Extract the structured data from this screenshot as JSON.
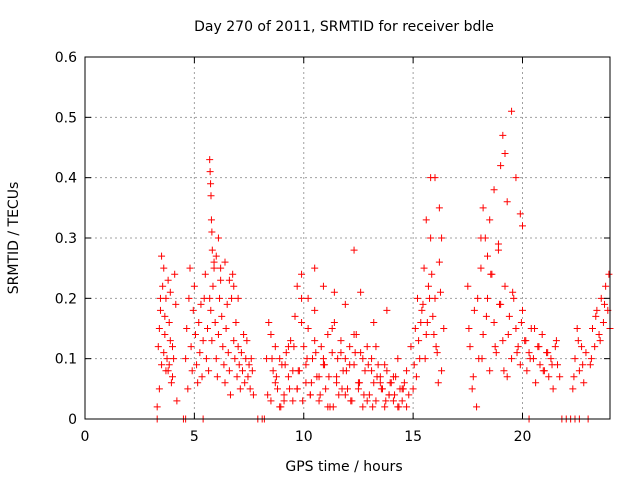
{
  "chart_data": {
    "type": "scatter",
    "title": "Day 270 of 2011, SRMTID for receiver bdle",
    "xlabel": "GPS time / hours",
    "ylabel": "SRMTID / TECUs",
    "xlim": [
      0,
      24
    ],
    "ylim": [
      0,
      0.6
    ],
    "xticks": [
      0,
      5,
      10,
      15,
      20
    ],
    "yticks": [
      0,
      0.1,
      0.2,
      0.3,
      0.4,
      0.5,
      0.6
    ],
    "xtick_labels": [
      "0",
      "5",
      "10",
      "15",
      "20"
    ],
    "ytick_labels": [
      "0",
      "0.1",
      "0.2",
      "0.3",
      "0.4",
      "0.5",
      "0.6"
    ],
    "grid": true,
    "marker": "+",
    "color": "#ff0000",
    "series": [
      {
        "x": [
          3.3,
          3.35,
          3.4,
          3.45,
          3.5,
          3.55,
          3.6,
          3.65,
          3.7,
          3.75,
          3.8,
          3.85,
          3.9,
          3.95,
          4.0,
          4.05,
          4.1,
          4.15,
          4.2,
          3.4,
          3.5,
          3.6,
          3.7,
          3.8,
          3.9,
          4.0,
          3.45,
          3.65,
          3.85,
          4.6,
          4.65,
          4.7,
          4.75,
          4.8,
          4.85,
          4.9,
          4.95,
          5.0,
          5.05,
          5.1,
          5.15,
          5.2,
          5.25,
          5.3,
          5.35,
          5.4,
          5.45,
          5.5,
          5.55,
          5.6,
          5.65,
          5.7,
          5.75,
          5.8,
          5.85,
          5.9,
          5.95,
          6.0,
          6.05,
          6.1,
          6.15,
          6.2,
          6.25,
          6.3,
          6.35,
          6.4,
          6.45,
          6.5,
          6.55,
          6.6,
          6.65,
          6.7,
          6.75,
          6.8,
          6.85,
          6.9,
          6.95,
          7.0,
          7.05,
          7.1,
          7.15,
          7.2,
          7.25,
          7.3,
          7.35,
          7.4,
          7.45,
          7.5,
          7.55,
          7.6,
          7.65,
          7.7,
          5.7,
          5.72,
          5.74,
          5.76,
          5.78,
          5.8,
          5.82,
          5.9,
          6.0,
          6.1,
          6.2,
          6.4,
          6.6,
          6.8,
          7.0,
          8.3,
          8.4,
          8.5,
          8.6,
          8.7,
          8.8,
          8.9,
          9.0,
          9.1,
          9.2,
          9.3,
          9.4,
          9.5,
          9.6,
          9.7,
          9.8,
          9.9,
          10.0,
          10.1,
          10.2,
          10.3,
          10.4,
          10.5,
          10.6,
          10.7,
          10.8,
          10.9,
          11.0,
          11.1,
          11.2,
          11.3,
          11.4,
          11.5,
          11.6,
          11.7,
          11.8,
          11.9,
          12.0,
          12.1,
          12.2,
          12.3,
          12.4,
          12.5,
          12.6,
          12.7,
          12.8,
          12.9,
          13.0,
          13.1,
          13.2,
          13.3,
          13.4,
          13.5,
          13.6,
          13.7,
          13.8,
          13.9,
          14.0,
          14.1,
          14.2,
          14.3,
          14.4,
          14.5,
          14.6,
          14.7,
          14.8,
          8.5,
          8.7,
          8.9,
          9.1,
          9.3,
          9.5,
          9.7,
          9.9,
          10.1,
          10.3,
          10.5,
          10.7,
          10.9,
          11.1,
          11.3,
          11.5,
          11.7,
          11.9,
          12.1,
          12.3,
          12.5,
          12.7,
          12.9,
          13.1,
          13.3,
          13.5,
          13.7,
          13.9,
          14.1,
          14.3,
          14.5,
          14.7,
          8.35,
          8.55,
          8.75,
          8.95,
          9.15,
          9.35,
          9.55,
          9.75,
          9.95,
          10.15,
          10.35,
          10.55,
          10.75,
          10.95,
          11.15,
          11.35,
          11.55,
          11.75,
          11.95,
          12.15,
          12.35,
          12.55,
          12.75,
          12.95,
          13.15,
          13.35,
          13.55,
          13.75,
          13.95,
          14.15,
          14.35,
          14.55,
          9.7,
          9.9,
          10.2,
          10.5,
          10.9,
          11.4,
          11.9,
          12.3,
          12.6,
          13.2,
          13.8,
          14.9,
          15.0,
          15.1,
          15.2,
          15.3,
          15.4,
          15.5,
          15.6,
          15.7,
          15.8,
          15.9,
          16.0,
          16.1,
          16.2,
          16.3,
          16.4,
          15.05,
          15.25,
          15.45,
          15.65,
          15.85,
          16.05,
          16.25,
          15.15,
          15.35,
          15.55,
          15.75,
          15.95,
          16.15,
          15.6,
          15.8,
          16.0,
          16.2,
          16.3,
          17.5,
          17.6,
          17.7,
          17.8,
          17.9,
          18.0,
          18.1,
          18.2,
          18.3,
          18.4,
          18.5,
          18.6,
          18.7,
          18.8,
          18.9,
          19.0,
          19.1,
          19.2,
          19.3,
          19.4,
          19.5,
          19.6,
          19.7,
          19.8,
          19.9,
          20.0,
          20.1,
          20.2,
          20.3,
          20.4,
          20.5,
          20.6,
          20.7,
          20.8,
          20.9,
          21.0,
          21.1,
          21.2,
          21.3,
          21.4,
          21.5,
          21.6,
          21.7,
          17.55,
          17.75,
          17.95,
          18.15,
          18.35,
          18.55,
          18.75,
          18.95,
          19.15,
          19.35,
          19.55,
          19.75,
          19.95,
          20.15,
          20.35,
          20.55,
          20.75,
          20.95,
          21.15,
          21.35,
          21.55,
          18.1,
          18.2,
          18.4,
          18.5,
          18.7,
          18.9,
          19.0,
          19.1,
          19.2,
          19.3,
          19.5,
          19.7,
          19.9,
          20.0,
          22.3,
          22.4,
          22.5,
          22.6,
          22.7,
          22.8,
          22.9,
          23.1,
          23.2,
          23.3,
          23.4,
          23.5,
          23.6,
          23.7,
          23.8,
          23.9,
          24.0,
          22.35,
          22.55,
          22.75,
          23.15,
          23.35,
          23.55,
          23.75,
          23.95,
          3.3,
          4.5,
          4.6,
          5.4,
          7.9,
          8.1,
          8.2,
          20.3,
          21.8,
          22.0,
          22.2,
          22.4,
          22.6,
          23.0
        ],
        "y": [
          0.02,
          0.12,
          0.05,
          0.18,
          0.09,
          0.22,
          0.25,
          0.14,
          0.2,
          0.1,
          0.08,
          0.16,
          0.21,
          0.06,
          0.12,
          0.1,
          0.24,
          0.19,
          0.03,
          0.15,
          0.27,
          0.11,
          0.08,
          0.23,
          0.13,
          0.07,
          0.2,
          0.17,
          0.09,
          0.1,
          0.15,
          0.05,
          0.2,
          0.25,
          0.12,
          0.08,
          0.18,
          0.22,
          0.14,
          0.09,
          0.06,
          0.16,
          0.11,
          0.19,
          0.07,
          0.13,
          0.2,
          0.24,
          0.1,
          0.15,
          0.08,
          0.2,
          0.18,
          0.13,
          0.22,
          0.25,
          0.16,
          0.1,
          0.07,
          0.14,
          0.2,
          0.23,
          0.17,
          0.12,
          0.09,
          0.06,
          0.15,
          0.19,
          0.11,
          0.08,
          0.04,
          0.2,
          0.24,
          0.13,
          0.1,
          0.16,
          0.07,
          0.12,
          0.09,
          0.05,
          0.11,
          0.08,
          0.14,
          0.06,
          0.1,
          0.13,
          0.07,
          0.09,
          0.05,
          0.1,
          0.08,
          0.04,
          0.43,
          0.41,
          0.39,
          0.37,
          0.33,
          0.31,
          0.28,
          0.26,
          0.27,
          0.3,
          0.25,
          0.26,
          0.23,
          0.22,
          0.2,
          0.1,
          0.16,
          0.03,
          0.08,
          0.12,
          0.05,
          0.02,
          0.09,
          0.04,
          0.11,
          0.07,
          0.13,
          0.03,
          0.17,
          0.05,
          0.08,
          0.2,
          0.12,
          0.06,
          0.15,
          0.04,
          0.1,
          0.18,
          0.07,
          0.03,
          0.12,
          0.09,
          0.05,
          0.14,
          0.02,
          0.11,
          0.16,
          0.07,
          0.04,
          0.13,
          0.08,
          0.1,
          0.05,
          0.12,
          0.03,
          0.09,
          0.14,
          0.06,
          0.11,
          0.02,
          0.08,
          0.12,
          0.04,
          0.1,
          0.06,
          0.03,
          0.09,
          0.07,
          0.05,
          0.02,
          0.08,
          0.04,
          0.06,
          0.03,
          0.07,
          0.02,
          0.05,
          0.03,
          0.06,
          0.02,
          0.04,
          0.14,
          0.06,
          0.1,
          0.03,
          0.12,
          0.08,
          0.05,
          0.16,
          0.09,
          0.04,
          0.13,
          0.07,
          0.1,
          0.02,
          0.15,
          0.06,
          0.11,
          0.04,
          0.09,
          0.14,
          0.05,
          0.1,
          0.03,
          0.08,
          0.12,
          0.06,
          0.09,
          0.04,
          0.07,
          0.1,
          0.05,
          0.08,
          0.04,
          0.1,
          0.07,
          0.02,
          0.09,
          0.05,
          0.12,
          0.08,
          0.03,
          0.1,
          0.06,
          0.11,
          0.04,
          0.09,
          0.07,
          0.02,
          0.1,
          0.05,
          0.08,
          0.03,
          0.11,
          0.06,
          0.04,
          0.09,
          0.02,
          0.07,
          0.05,
          0.03,
          0.06,
          0.04,
          0.02,
          0.05,
          0.22,
          0.24,
          0.2,
          0.25,
          0.22,
          0.21,
          0.19,
          0.28,
          0.21,
          0.16,
          0.18,
          0.12,
          0.05,
          0.15,
          0.2,
          0.1,
          0.18,
          0.25,
          0.14,
          0.22,
          0.3,
          0.17,
          0.2,
          0.11,
          0.26,
          0.08,
          0.15,
          0.09,
          0.13,
          0.19,
          0.16,
          0.24,
          0.12,
          0.21,
          0.07,
          0.16,
          0.1,
          0.2,
          0.14,
          0.06,
          0.33,
          0.4,
          0.4,
          0.35,
          0.3,
          0.22,
          0.12,
          0.05,
          0.18,
          0.02,
          0.1,
          0.25,
          0.14,
          0.3,
          0.2,
          0.08,
          0.24,
          0.16,
          0.11,
          0.28,
          0.19,
          0.13,
          0.22,
          0.07,
          0.17,
          0.1,
          0.2,
          0.15,
          0.12,
          0.09,
          0.18,
          0.13,
          0.08,
          0.11,
          0.15,
          0.1,
          0.06,
          0.12,
          0.09,
          0.14,
          0.08,
          0.11,
          0.07,
          0.1,
          0.05,
          0.12,
          0.09,
          0.07,
          0.15,
          0.07,
          0.2,
          0.1,
          0.17,
          0.24,
          0.12,
          0.19,
          0.08,
          0.14,
          0.21,
          0.11,
          0.16,
          0.13,
          0.1,
          0.15,
          0.12,
          0.08,
          0.11,
          0.09,
          0.13,
          0.3,
          0.35,
          0.27,
          0.33,
          0.38,
          0.29,
          0.42,
          0.47,
          0.44,
          0.36,
          0.51,
          0.4,
          0.34,
          0.32,
          0.05,
          0.1,
          0.15,
          0.08,
          0.12,
          0.06,
          0.11,
          0.09,
          0.15,
          0.12,
          0.18,
          0.14,
          0.2,
          0.16,
          0.22,
          0.18,
          0.15,
          0.07,
          0.13,
          0.09,
          0.1,
          0.17,
          0.13,
          0.19,
          0.24,
          0.0,
          0.0,
          0.0,
          0.0,
          0.0,
          0.0,
          0.0,
          0.0,
          0.0,
          0.0,
          0.0,
          0.0,
          0.0,
          0.0
        ]
      }
    ]
  }
}
